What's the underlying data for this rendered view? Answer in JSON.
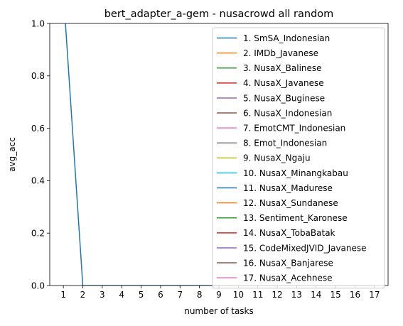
{
  "chart_data": {
    "type": "line",
    "title": "bert_adapter_a-gem - nusacrowd all random",
    "xlabel": "number of tasks",
    "ylabel": "avg_acc",
    "xlim": [
      0.3,
      17.7
    ],
    "ylim": [
      0,
      1
    ],
    "x_ticks": [
      "1",
      "2",
      "3",
      "4",
      "5",
      "6",
      "7",
      "8",
      "9",
      "10",
      "11",
      "12",
      "13",
      "14",
      "15",
      "16",
      "17"
    ],
    "y_ticks": [
      "0.0",
      "0.2",
      "0.4",
      "0.6",
      "0.8",
      "1.0"
    ],
    "legend_position": "upper-right",
    "series": [
      {
        "name": "1. SmSA_Indonesian",
        "color": "#1f77b4",
        "x": [
          1,
          2,
          3,
          4,
          5,
          6,
          7,
          8,
          9,
          10,
          11,
          12,
          13,
          14,
          15,
          16,
          17
        ],
        "values": [
          1.12,
          0,
          0,
          0,
          0,
          0,
          0,
          0,
          0,
          0,
          0,
          0,
          0,
          0,
          0,
          0,
          0
        ]
      },
      {
        "name": "2. IMDb_Javanese",
        "color": "#ff7f0e",
        "x": [],
        "values": []
      },
      {
        "name": "3. NusaX_Balinese",
        "color": "#2ca02c",
        "x": [],
        "values": []
      },
      {
        "name": "4. NusaX_Javanese",
        "color": "#d62728",
        "x": [],
        "values": []
      },
      {
        "name": "5. NusaX_Buginese",
        "color": "#9467bd",
        "x": [],
        "values": []
      },
      {
        "name": "6. NusaX_Indonesian",
        "color": "#8c564b",
        "x": [],
        "values": []
      },
      {
        "name": "7. EmotCMT_Indonesian",
        "color": "#e377c2",
        "x": [],
        "values": []
      },
      {
        "name": "8. Emot_Indonesian",
        "color": "#7f7f7f",
        "x": [],
        "values": []
      },
      {
        "name": "9. NusaX_Ngaju",
        "color": "#bcbd22",
        "x": [],
        "values": []
      },
      {
        "name": "10. NusaX_Minangkabau",
        "color": "#17becf",
        "x": [],
        "values": []
      },
      {
        "name": "11. NusaX_Madurese",
        "color": "#1f77b4",
        "x": [],
        "values": []
      },
      {
        "name": "12. NusaX_Sundanese",
        "color": "#ff7f0e",
        "x": [],
        "values": []
      },
      {
        "name": "13. Sentiment_Karonese",
        "color": "#2ca02c",
        "x": [],
        "values": []
      },
      {
        "name": "14. NusaX_TobaBatak",
        "color": "#d62728",
        "x": [],
        "values": []
      },
      {
        "name": "15. CodeMixedJVID_Javanese",
        "color": "#9467bd",
        "x": [],
        "values": []
      },
      {
        "name": "16. NusaX_Banjarese",
        "color": "#8c564b",
        "x": [],
        "values": []
      },
      {
        "name": "17. NusaX_Acehnese",
        "color": "#e377c2",
        "x": [],
        "values": []
      }
    ]
  }
}
